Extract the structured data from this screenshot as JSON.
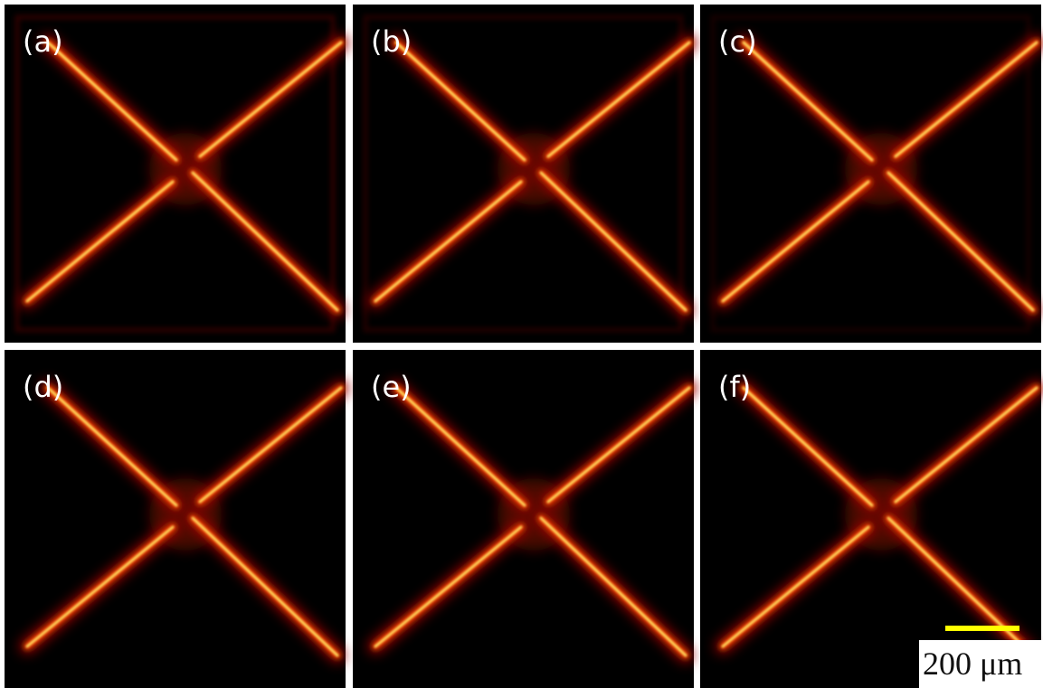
{
  "panels": [
    {
      "label": "(a)"
    },
    {
      "label": "(b)"
    },
    {
      "label": "(c)"
    },
    {
      "label": "(d)"
    },
    {
      "label": "(e)"
    },
    {
      "label": "(f)"
    }
  ],
  "scale_bar": {
    "label": "200 μm"
  }
}
